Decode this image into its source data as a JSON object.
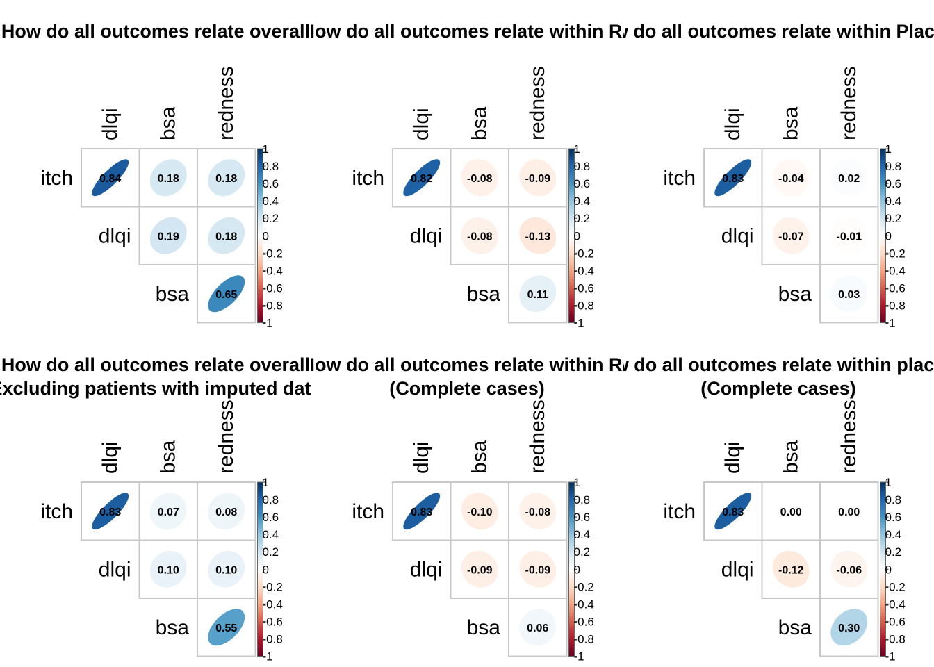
{
  "chart_data": [
    {
      "type": "heatmap",
      "title": "How do all outcomes relate overall",
      "subtitle": "",
      "row_labels": [
        "itch",
        "dlqi",
        "bsa"
      ],
      "col_labels": [
        "dlqi",
        "bsa",
        "redness"
      ],
      "values": [
        [
          0.84,
          0.18,
          0.18
        ],
        [
          null,
          0.19,
          0.18
        ],
        [
          null,
          null,
          0.65
        ]
      ],
      "value_labels": [
        [
          "0.84",
          "0.18",
          "0.18"
        ],
        [
          null,
          "0.19",
          "0.18"
        ],
        [
          null,
          null,
          "0.65"
        ]
      ],
      "colorbar_ticks": [
        "1",
        "0.8",
        "0.6",
        "0.4",
        "0.2",
        "0",
        "-0.2",
        "-0.4",
        "-0.6",
        "-0.8",
        "-1"
      ],
      "range": [
        -1,
        1
      ]
    },
    {
      "type": "heatmap",
      "title": "How do all outcomes relate within Rx",
      "subtitle": "",
      "row_labels": [
        "itch",
        "dlqi",
        "bsa"
      ],
      "col_labels": [
        "dlqi",
        "bsa",
        "redness"
      ],
      "values": [
        [
          0.82,
          -0.08,
          -0.09
        ],
        [
          null,
          -0.08,
          -0.13
        ],
        [
          null,
          null,
          0.11
        ]
      ],
      "value_labels": [
        [
          "0.82",
          "-0.08",
          "-0.09"
        ],
        [
          null,
          "-0.08",
          "-0.13"
        ],
        [
          null,
          null,
          "0.11"
        ]
      ],
      "colorbar_ticks": [
        "1",
        "0.8",
        "0.6",
        "0.4",
        "0.2",
        "0",
        "-0.2",
        "-0.4",
        "-0.6",
        "-0.8",
        "-1"
      ],
      "range": [
        -1,
        1
      ]
    },
    {
      "type": "heatmap",
      "title": "How do all outcomes relate within Placebo",
      "subtitle": "",
      "row_labels": [
        "itch",
        "dlqi",
        "bsa"
      ],
      "col_labels": [
        "dlqi",
        "bsa",
        "redness"
      ],
      "values": [
        [
          0.83,
          -0.04,
          0.02
        ],
        [
          null,
          -0.07,
          -0.01
        ],
        [
          null,
          null,
          0.03
        ]
      ],
      "value_labels": [
        [
          "0.83",
          "-0.04",
          "0.02"
        ],
        [
          null,
          "-0.07",
          "-0.01"
        ],
        [
          null,
          null,
          "0.03"
        ]
      ],
      "colorbar_ticks": [
        "1",
        "0.8",
        "0.6",
        "0.4",
        "0.2",
        "0",
        "-0.2",
        "-0.4",
        "-0.6",
        "-0.8",
        "-1"
      ],
      "range": [
        -1,
        1
      ]
    },
    {
      "type": "heatmap",
      "title": "How do all outcomes relate overall",
      "subtitle": "Excluding patients with imputed data",
      "row_labels": [
        "itch",
        "dlqi",
        "bsa"
      ],
      "col_labels": [
        "dlqi",
        "bsa",
        "redness"
      ],
      "values": [
        [
          0.83,
          0.07,
          0.08
        ],
        [
          null,
          0.1,
          0.1
        ],
        [
          null,
          null,
          0.55
        ]
      ],
      "value_labels": [
        [
          "0.83",
          "0.07",
          "0.08"
        ],
        [
          null,
          "0.10",
          "0.10"
        ],
        [
          null,
          null,
          "0.55"
        ]
      ],
      "colorbar_ticks": [
        "1",
        "0.8",
        "0.6",
        "0.4",
        "0.2",
        "0",
        "-0.2",
        "-0.4",
        "-0.6",
        "-0.8",
        "-1"
      ],
      "range": [
        -1,
        1
      ]
    },
    {
      "type": "heatmap",
      "title": "How do all outcomes relate within Rx",
      "subtitle": "(Complete cases)",
      "row_labels": [
        "itch",
        "dlqi",
        "bsa"
      ],
      "col_labels": [
        "dlqi",
        "bsa",
        "redness"
      ],
      "values": [
        [
          0.83,
          -0.1,
          -0.08
        ],
        [
          null,
          -0.09,
          -0.09
        ],
        [
          null,
          null,
          0.06
        ]
      ],
      "value_labels": [
        [
          "0.83",
          "-0.10",
          "-0.08"
        ],
        [
          null,
          "-0.09",
          "-0.09"
        ],
        [
          null,
          null,
          "0.06"
        ]
      ],
      "colorbar_ticks": [
        "1",
        "0.8",
        "0.6",
        "0.4",
        "0.2",
        "0",
        "-0.2",
        "-0.4",
        "-0.6",
        "-0.8",
        "-1"
      ],
      "range": [
        -1,
        1
      ]
    },
    {
      "type": "heatmap",
      "title": "How do all outcomes relate within placebo",
      "subtitle": "(Complete cases)",
      "row_labels": [
        "itch",
        "dlqi",
        "bsa"
      ],
      "col_labels": [
        "dlqi",
        "bsa",
        "redness"
      ],
      "values": [
        [
          0.83,
          0.0,
          0.0
        ],
        [
          null,
          -0.12,
          -0.06
        ],
        [
          null,
          null,
          0.3
        ]
      ],
      "value_labels": [
        [
          "0.83",
          "0.00",
          "0.00"
        ],
        [
          null,
          "-0.12",
          "-0.06"
        ],
        [
          null,
          null,
          "0.30"
        ]
      ],
      "colorbar_ticks": [
        "1",
        "0.8",
        "0.6",
        "0.4",
        "0.2",
        "0",
        "-0.2",
        "-0.4",
        "-0.6",
        "-0.8",
        "-1"
      ],
      "range": [
        -1,
        1
      ]
    }
  ]
}
